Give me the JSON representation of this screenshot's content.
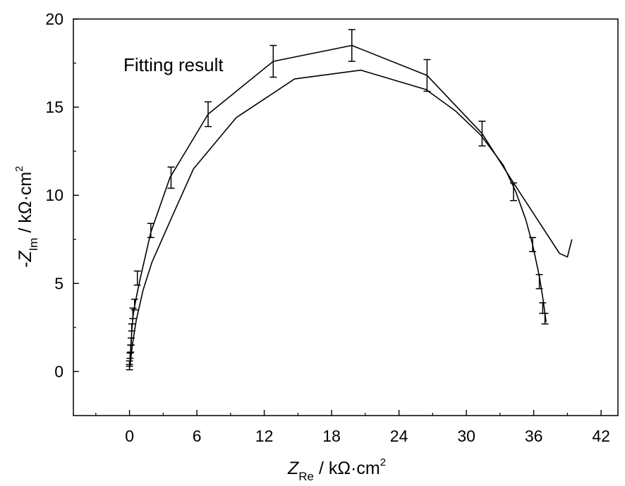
{
  "chart_data": {
    "type": "line",
    "annotation": "Fitting result",
    "xlabel": {
      "symbol": "Z",
      "subscript": "Re",
      "unit": " / kΩ·cm",
      "superscript": "2"
    },
    "ylabel": {
      "prefix": "-",
      "symbol": "Z",
      "subscript": "Im",
      "unit": " / kΩ·cm",
      "superscript": "2"
    },
    "xlim": [
      -5,
      43.5
    ],
    "ylim": [
      -2.5,
      20
    ],
    "xticks": [
      0,
      6,
      12,
      18,
      24,
      30,
      36,
      42
    ],
    "yticks": [
      0,
      5,
      10,
      15,
      20
    ],
    "grid": false,
    "series": [
      {
        "x": [
          0.0,
          0.05,
          0.1,
          0.15,
          0.2,
          0.3,
          0.45,
          0.7,
          1.0,
          1.9,
          3.6,
          7.0,
          12.8,
          19.8,
          26.5,
          31.4,
          34.2,
          38.3,
          39.0,
          39.4
        ],
        "y": [
          0.2,
          0.7,
          1.2,
          1.7,
          2.3,
          3.1,
          3.7,
          4.5,
          5.4,
          7.9,
          11.0,
          14.6,
          17.6,
          18.5,
          16.8,
          13.5,
          10.7,
          6.7,
          6.5,
          7.5
        ]
      },
      {
        "x": [
          0.05,
          0.25,
          0.6,
          1.2,
          2.0,
          3.8,
          5.7,
          9.5,
          14.7,
          20.6,
          26.4,
          29.0,
          31.3,
          33.3,
          34.4,
          35.3,
          35.9,
          36.5,
          36.8,
          37.0,
          37.1
        ],
        "y": [
          0.3,
          1.5,
          2.9,
          4.6,
          6.2,
          8.8,
          11.5,
          14.4,
          16.6,
          17.1,
          16.0,
          14.8,
          13.4,
          11.7,
          10.2,
          8.6,
          7.2,
          5.4,
          4.2,
          3.3,
          2.8
        ]
      }
    ],
    "error_bars": {
      "x": [
        0.0,
        0.0,
        0.05,
        0.1,
        0.15,
        0.2,
        0.3,
        0.45,
        0.7,
        1.9,
        3.7,
        7.0,
        12.8,
        19.8,
        26.5,
        31.4,
        34.2,
        35.9,
        36.5,
        36.8,
        37.0
      ],
      "y": [
        0.2,
        0.5,
        0.9,
        1.3,
        1.7,
        2.5,
        3.3,
        3.8,
        5.3,
        8.0,
        11.0,
        14.6,
        17.6,
        18.5,
        16.8,
        13.5,
        10.2,
        7.2,
        5.1,
        3.6,
        3.0
      ],
      "err": [
        0.1,
        0.1,
        0.15,
        0.2,
        0.2,
        0.2,
        0.3,
        0.3,
        0.4,
        0.4,
        0.6,
        0.7,
        0.9,
        0.9,
        0.9,
        0.7,
        0.5,
        0.4,
        0.4,
        0.3,
        0.3
      ]
    }
  }
}
